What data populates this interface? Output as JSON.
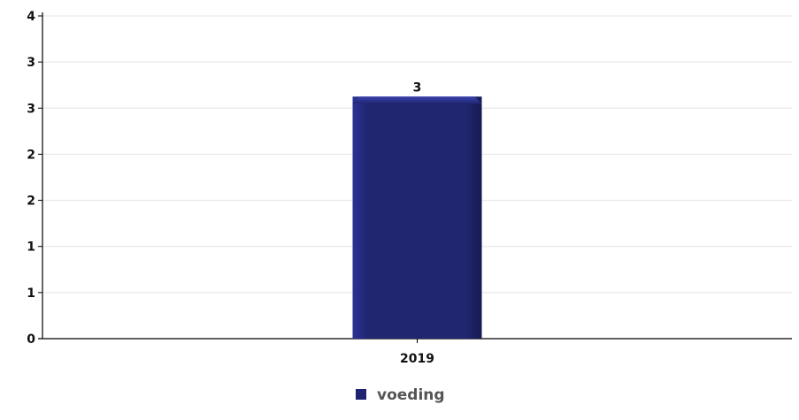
{
  "chart_data": {
    "type": "bar",
    "title": "",
    "xlabel": "",
    "ylabel": "",
    "categories": [
      "2019"
    ],
    "series": [
      {
        "name": "voeding",
        "values": [
          3
        ],
        "color": "#1f2470"
      }
    ],
    "ylim": [
      0,
      4
    ],
    "y_tick_labels": [
      "0",
      "1",
      "1",
      "2",
      "2",
      "3",
      "3",
      "4"
    ],
    "data_labels": [
      "3"
    ],
    "grid": true,
    "legend_position": "bottom-center"
  }
}
